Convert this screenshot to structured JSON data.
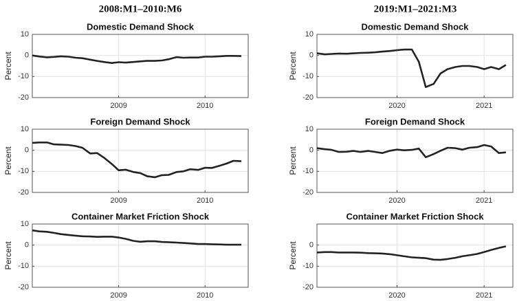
{
  "column_titles": [
    "2008:M1–2010:M6",
    "2019:M1–2021:M3"
  ],
  "chart_data": [
    {
      "type": "line",
      "title": "Domestic Demand Shock",
      "ylabel": "Percent",
      "grid": true,
      "color": "#222222",
      "x": [
        2008,
        2008.08,
        2008.17,
        2008.25,
        2008.33,
        2008.42,
        2008.5,
        2008.58,
        2008.67,
        2008.75,
        2008.83,
        2008.92,
        2009,
        2009.08,
        2009.17,
        2009.25,
        2009.33,
        2009.42,
        2009.5,
        2009.58,
        2009.67,
        2009.75,
        2009.83,
        2009.92,
        2010,
        2010.08,
        2010.17,
        2010.25,
        2010.33,
        2010.42
      ],
      "values": [
        0,
        -0.5,
        -0.9,
        -0.7,
        -0.4,
        -0.6,
        -1.1,
        -1.3,
        -2,
        -2.6,
        -3.1,
        -3.6,
        -3.2,
        -3.4,
        -3.1,
        -2.8,
        -2.6,
        -2.6,
        -2.4,
        -1.8,
        -0.8,
        -1.1,
        -1,
        -1,
        -0.6,
        -0.6,
        -0.4,
        -0.2,
        -0.2,
        -0.3
      ],
      "xlim": [
        2008,
        2010.5
      ],
      "xticks": [
        2009,
        2010
      ],
      "ylim": [
        -20,
        10
      ],
      "yticks": [
        -20,
        -10,
        0,
        10
      ]
    },
    {
      "type": "line",
      "title": "Domestic Demand Shock",
      "ylabel": "Percent",
      "grid": true,
      "color": "#222222",
      "x": [
        2019.08,
        2019.17,
        2019.25,
        2019.33,
        2019.42,
        2019.5,
        2019.58,
        2019.67,
        2019.75,
        2019.83,
        2019.92,
        2020,
        2020.08,
        2020.17,
        2020.25,
        2020.33,
        2020.42,
        2020.5,
        2020.58,
        2020.67,
        2020.75,
        2020.83,
        2020.92,
        2021,
        2021.08,
        2021.17,
        2021.25
      ],
      "values": [
        1,
        0.5,
        0.7,
        0.9,
        0.8,
        1,
        1.2,
        1.3,
        1.5,
        1.8,
        2.1,
        2.5,
        2.8,
        2.8,
        -3,
        -15,
        -13.5,
        -8.5,
        -6.5,
        -5.5,
        -5,
        -5,
        -5.5,
        -6.5,
        -5.5,
        -6.5,
        -4.5
      ],
      "xlim": [
        2019.08,
        2021.33
      ],
      "xticks": [
        2020,
        2021
      ],
      "ylim": [
        -20,
        10
      ],
      "yticks": [
        -20,
        -10,
        0,
        10
      ]
    },
    {
      "type": "line",
      "title": "Foreign Demand Shock",
      "ylabel": "Percent",
      "grid": true,
      "color": "#222222",
      "x": [
        2008,
        2008.08,
        2008.17,
        2008.25,
        2008.33,
        2008.42,
        2008.5,
        2008.58,
        2008.67,
        2008.75,
        2008.83,
        2008.92,
        2009,
        2009.08,
        2009.17,
        2009.25,
        2009.33,
        2009.42,
        2009.5,
        2009.58,
        2009.67,
        2009.75,
        2009.83,
        2009.92,
        2010,
        2010.08,
        2010.17,
        2010.25,
        2010.33,
        2010.42
      ],
      "values": [
        3.5,
        3.7,
        3.7,
        2.8,
        2.7,
        2.5,
        2,
        1.2,
        -1.5,
        -1.3,
        -3.5,
        -6.5,
        -9.5,
        -9.2,
        -10.3,
        -10.8,
        -12.3,
        -12.8,
        -11.8,
        -11.7,
        -10.3,
        -10,
        -9,
        -9.3,
        -8.3,
        -8.4,
        -7.3,
        -6.3,
        -5,
        -5.2
      ],
      "xlim": [
        2008,
        2010.5
      ],
      "xticks": [
        2009,
        2010
      ],
      "ylim": [
        -20,
        10
      ],
      "yticks": [
        -20,
        -10,
        0,
        10
      ]
    },
    {
      "type": "line",
      "title": "Foreign Demand Shock",
      "ylabel": "Percent",
      "grid": true,
      "color": "#222222",
      "x": [
        2019.08,
        2019.17,
        2019.25,
        2019.33,
        2019.42,
        2019.5,
        2019.58,
        2019.67,
        2019.75,
        2019.83,
        2019.92,
        2020,
        2020.08,
        2020.17,
        2020.25,
        2020.33,
        2020.42,
        2020.5,
        2020.58,
        2020.67,
        2020.75,
        2020.83,
        2020.92,
        2021,
        2021.08,
        2021.17,
        2021.25
      ],
      "values": [
        1,
        0.5,
        0.2,
        -0.8,
        -0.7,
        -0.3,
        -0.8,
        -0.3,
        -0.8,
        -1.3,
        -0.2,
        0.3,
        0,
        0.2,
        0.8,
        -3.3,
        -1.8,
        -0.2,
        1.2,
        1,
        0.3,
        1.2,
        1.5,
        2.5,
        1.8,
        -1.3,
        -1
      ],
      "xlim": [
        2019.08,
        2021.33
      ],
      "xticks": [
        2020,
        2021
      ],
      "ylim": [
        -20,
        10
      ],
      "yticks": [
        -20,
        -10,
        0,
        10
      ]
    },
    {
      "type": "line",
      "title": "Container Market Friction Shock",
      "ylabel": "Percent",
      "grid": true,
      "color": "#222222",
      "x": [
        2008,
        2008.08,
        2008.17,
        2008.25,
        2008.33,
        2008.42,
        2008.5,
        2008.58,
        2008.67,
        2008.75,
        2008.83,
        2008.92,
        2009,
        2009.08,
        2009.17,
        2009.25,
        2009.33,
        2009.42,
        2009.5,
        2009.58,
        2009.67,
        2009.75,
        2009.83,
        2009.92,
        2010,
        2010.08,
        2010.17,
        2010.25,
        2010.33,
        2010.42
      ],
      "values": [
        7,
        6.5,
        6.3,
        5.8,
        5.2,
        4.8,
        4.5,
        4.2,
        4.1,
        3.9,
        4,
        4,
        3.6,
        3,
        2,
        1.6,
        1.8,
        1.8,
        1.5,
        1.4,
        1.2,
        1,
        0.8,
        0.5,
        0.5,
        0.4,
        0.3,
        0.2,
        0.2,
        0.2
      ],
      "xlim": [
        2008,
        2010.5
      ],
      "xticks": [
        2009,
        2010
      ],
      "ylim": [
        -20,
        10
      ],
      "yticks": [
        -20,
        -10,
        0,
        10
      ]
    },
    {
      "type": "line",
      "title": "Container Market Friction Shock",
      "ylabel": "Percent",
      "grid": true,
      "color": "#222222",
      "x": [
        2019.08,
        2019.17,
        2019.25,
        2019.33,
        2019.42,
        2019.5,
        2019.58,
        2019.67,
        2019.75,
        2019.83,
        2019.92,
        2020,
        2020.08,
        2020.17,
        2020.25,
        2020.33,
        2020.42,
        2020.5,
        2020.58,
        2020.67,
        2020.75,
        2020.83,
        2020.92,
        2021,
        2021.08,
        2021.17,
        2021.25
      ],
      "values": [
        -3.5,
        -3.3,
        -3.3,
        -3.5,
        -3.5,
        -3.5,
        -3.6,
        -3.8,
        -3.9,
        -4,
        -4.3,
        -4.8,
        -5.3,
        -5.8,
        -6,
        -6.2,
        -6.9,
        -7,
        -6.6,
        -6,
        -5.3,
        -4.8,
        -4.2,
        -3.3,
        -2.3,
        -1.3,
        -0.6
      ],
      "xlim": [
        2019.08,
        2021.33
      ],
      "xticks": [
        2020,
        2021
      ],
      "ylim": [
        -20,
        10
      ],
      "yticks": [
        -20,
        -10,
        0
      ]
    }
  ]
}
